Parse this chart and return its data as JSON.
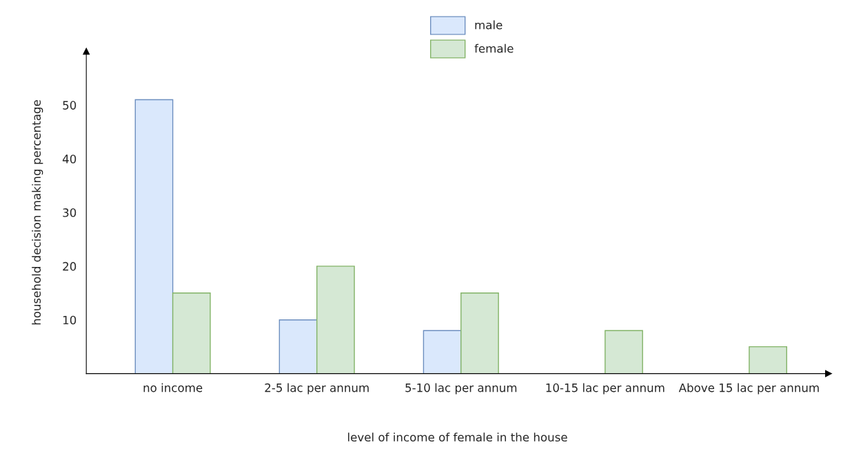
{
  "chart_data": {
    "type": "bar",
    "xlabel": "level of income of female in the house",
    "ylabel": "household decision making percentage",
    "categories": [
      "no income",
      "2-5 lac per annum",
      "5-10 lac per annum",
      "10-15 lac per annum",
      "Above 15 lac per annum"
    ],
    "series": [
      {
        "name": "male",
        "color": "#dae8fc",
        "values": [
          51,
          10,
          8,
          null,
          null
        ]
      },
      {
        "name": "female",
        "color": "#d5e8d4",
        "values": [
          15,
          20,
          15,
          8,
          5
        ]
      }
    ],
    "ylim": [
      0,
      60
    ],
    "yticks": [
      10,
      20,
      30,
      40,
      50
    ],
    "grid": false,
    "legend": "top"
  }
}
